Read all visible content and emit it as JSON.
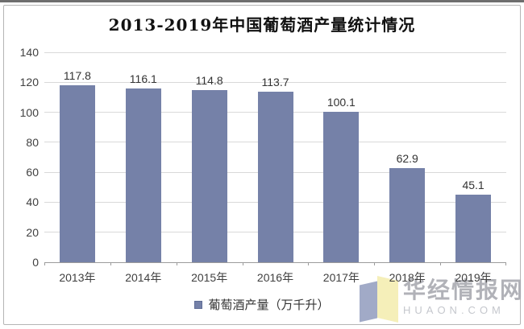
{
  "chart_data": {
    "type": "bar",
    "title": "2013-2019年中国葡萄酒产量统计情况",
    "categories": [
      "2013年",
      "2014年",
      "2015年",
      "2016年",
      "2017年",
      "2018年",
      "2019年"
    ],
    "series": [
      {
        "name": "葡萄酒产量（万千升）",
        "values": [
          117.8,
          116.1,
          114.8,
          113.7,
          100.1,
          62.9,
          45.1
        ]
      }
    ],
    "data_labels": [
      "117.8",
      "116.1",
      "114.8",
      "113.7",
      "100.1",
      "62.9",
      "45.1"
    ],
    "xlabel": "",
    "ylabel": "",
    "ylim": [
      0,
      140
    ],
    "yticks": [
      0,
      20,
      40,
      60,
      80,
      100,
      120,
      140
    ],
    "grid": true,
    "legend_position": "bottom",
    "bar_color": "#7581a8"
  },
  "legend": {
    "label": "葡萄酒产量（万千升）",
    "marker_color": "#7581a8"
  },
  "watermark": {
    "name": "华经情报网",
    "domain": "HUAON.COM",
    "logo_left_color": "#97a1c1",
    "logo_right_color": "#f4eeb2"
  }
}
